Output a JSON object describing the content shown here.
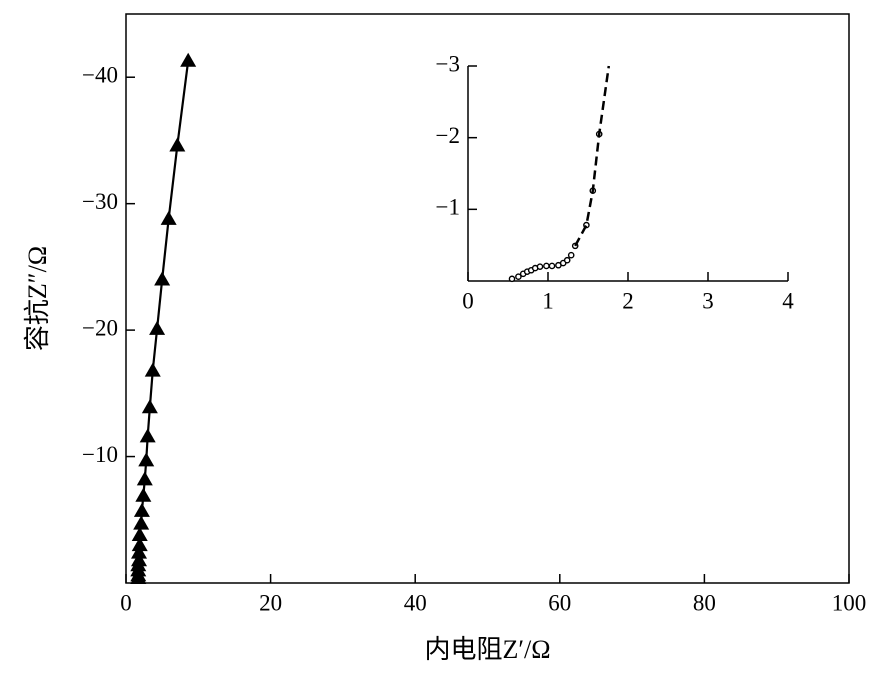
{
  "chart_data": [
    {
      "type": "line",
      "x_label": "内电阻Z′/Ω",
      "y_label": "容抗Z″/Ω",
      "xlim": [
        0,
        100
      ],
      "ylim": [
        0,
        -45
      ],
      "xticks": [
        0,
        20,
        40,
        60,
        80,
        100
      ],
      "yticks": [
        {
          "value": -10,
          "label": "−10"
        },
        {
          "value": -20,
          "label": "−20"
        },
        {
          "value": -30,
          "label": "−30"
        },
        {
          "value": -40,
          "label": "−40"
        }
      ],
      "box": true,
      "series": [
        {
          "color": "#000000",
          "marker": "triangle",
          "linestyle": "solid",
          "x": [
            1.7,
            1.7,
            1.7,
            1.7,
            1.8,
            1.8,
            1.9,
            1.9,
            2.1,
            2.2,
            2.4,
            2.6,
            2.8,
            3.0,
            3.3,
            3.7,
            4.3,
            5.0,
            5.9,
            7.1,
            8.6
          ],
          "values": [
            -0.4,
            -0.6,
            -1.0,
            -1.4,
            -1.8,
            -2.4,
            -3.0,
            -3.8,
            -4.7,
            -5.7,
            -6.9,
            -8.2,
            -9.7,
            -11.6,
            -13.9,
            -16.8,
            -20.1,
            -24.0,
            -28.8,
            -34.6,
            -41.3
          ]
        }
      ]
    },
    {
      "type": "line",
      "xlim": [
        0,
        4
      ],
      "ylim": [
        0,
        -3
      ],
      "xticks": [
        0,
        1,
        2,
        3,
        4
      ],
      "yticks": [
        {
          "value": -1,
          "label": "−1"
        },
        {
          "value": -2,
          "label": "−2"
        },
        {
          "value": -3,
          "label": "−3"
        }
      ],
      "box": false,
      "series": [
        {
          "color": "#000000",
          "marker": "circle",
          "linestyle": "none",
          "x": [
            0.55,
            0.63,
            0.69,
            0.74,
            0.79,
            0.84,
            0.9,
            0.98,
            1.05,
            1.13,
            1.19,
            1.24,
            1.29,
            1.34,
            1.48,
            1.56,
            1.64
          ],
          "values": [
            -0.03,
            -0.06,
            -0.1,
            -0.13,
            -0.15,
            -0.18,
            -0.2,
            -0.21,
            -0.21,
            -0.22,
            -0.25,
            -0.29,
            -0.36,
            -0.49,
            -0.78,
            -1.26,
            -2.05
          ]
        },
        {
          "color": "#000000",
          "marker": "none",
          "linestyle": "dashed",
          "x": [
            1.34,
            1.48,
            1.56,
            1.64,
            1.76
          ],
          "values": [
            -0.49,
            -0.78,
            -1.26,
            -2.05,
            -3.0
          ]
        }
      ]
    }
  ]
}
